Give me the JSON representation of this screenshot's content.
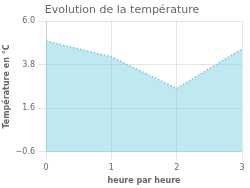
{
  "chart_data": {
    "type": "area",
    "title": "Evolution de la température",
    "xlabel": "heure par heure",
    "ylabel": "Température en °C",
    "x": [
      0,
      1,
      2,
      3
    ],
    "values": [
      5.0,
      4.2,
      2.6,
      4.6
    ],
    "color": "#70cce0",
    "line_style": "dotted",
    "xlim": [
      0,
      3
    ],
    "xticks": [
      0,
      1,
      2,
      3
    ],
    "ylim": [
      -0.6,
      6.0
    ],
    "yticks": [
      {
        "value": -0.6,
        "label": "−0.6"
      },
      1.6,
      3.8,
      {
        "value": 6.0,
        "label": "6.0"
      }
    ],
    "grid": true
  }
}
